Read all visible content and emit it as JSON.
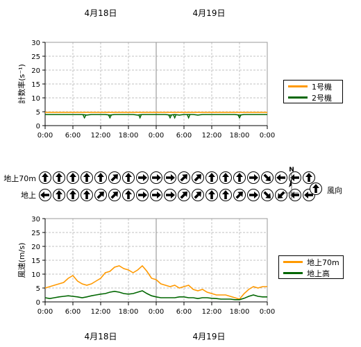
{
  "dates": {
    "day1": "4月18日",
    "day2": "4月19日"
  },
  "time_ticks": [
    "0:00",
    "6:00",
    "12:00",
    "18:00",
    "0:00",
    "6:00",
    "12:00",
    "18:00",
    "0:00"
  ],
  "colors": {
    "unit1": "#ff9900",
    "unit2": "#006600",
    "speed70": "#ff9900",
    "speedGround": "#006600"
  },
  "count_legend": {
    "unit1": "1号機",
    "unit2": "2号機"
  },
  "speed_legend": {
    "speed70": "地上70m",
    "speedGround": "地上高"
  },
  "direction": {
    "row1_label": "地上70m",
    "row2_label": "地上",
    "legend_label": "風向",
    "north_label": "N",
    "row1_deg": [
      0,
      0,
      0,
      0,
      0,
      45,
      0,
      90,
      90,
      90,
      45,
      45,
      0,
      0,
      0,
      90,
      135,
      270,
      270,
      0
    ],
    "row2_deg": [
      270,
      0,
      0,
      0,
      45,
      45,
      0,
      90,
      90,
      90,
      45,
      45,
      0,
      0,
      45,
      90,
      135,
      225,
      270,
      270
    ]
  },
  "chart_data": [
    {
      "type": "line",
      "ylabel": "計数率(s⁻¹)",
      "ylim": [
        0,
        30
      ],
      "yticks": [
        0,
        5,
        10,
        15,
        20,
        25,
        30
      ],
      "xlim_hours": [
        0,
        48
      ],
      "series": [
        {
          "name": "1号機",
          "values": [
            4.8,
            4.8,
            4.8,
            4.8,
            4.8,
            4.8,
            4.8,
            4.8,
            4.8,
            4.8,
            4.8,
            4.8,
            4.8,
            4.8,
            4.8,
            4.8,
            4.8,
            4.8,
            4.8,
            4.8,
            4.8,
            4.8,
            4.8,
            4.8,
            4.8,
            4.8,
            4.8,
            4.8,
            4.8,
            4.8,
            4.8,
            4.8,
            4.8,
            4.8,
            4.8,
            4.8,
            4.8,
            4.8,
            4.8,
            4.8,
            4.8,
            4.8,
            4.8,
            4.8,
            4.8,
            4.8,
            4.8,
            4.8,
            4.8
          ]
        },
        {
          "name": "2号機",
          "values": [
            4.0,
            4.0,
            4.0,
            4.0,
            4.0,
            4.0,
            4.0,
            4.0,
            4.0,
            3.8,
            4.0,
            4.0,
            4.0,
            4.0,
            3.8,
            4.0,
            4.0,
            4.0,
            4.0,
            4.0,
            3.8,
            4.0,
            4.0,
            4.0,
            4.0,
            4.0,
            4.0,
            3.8,
            4.0,
            3.8,
            4.0,
            4.0,
            4.0,
            3.8,
            4.0,
            4.0,
            4.0,
            4.0,
            4.0,
            4.0,
            4.0,
            4.0,
            3.8,
            4.0,
            4.0,
            4.0,
            4.0,
            4.0,
            4.0
          ]
        }
      ],
      "dips": [
        {
          "series": "2号機",
          "hour": 8.5,
          "value": 2.8
        },
        {
          "series": "2号機",
          "hour": 14,
          "value": 2.8
        },
        {
          "series": "2号機",
          "hour": 20.5,
          "value": 2.8
        },
        {
          "series": "2号機",
          "hour": 27,
          "value": 2.8
        },
        {
          "series": "2号機",
          "hour": 28,
          "value": 2.8
        },
        {
          "series": "2号機",
          "hour": 31,
          "value": 2.8
        },
        {
          "series": "2号機",
          "hour": 42,
          "value": 2.8
        }
      ]
    },
    {
      "type": "line",
      "ylabel": "風速(m/s)",
      "ylim": [
        0,
        30
      ],
      "yticks": [
        0,
        5,
        10,
        15,
        20,
        25,
        30
      ],
      "xlim_hours": [
        0,
        48
      ],
      "series": [
        {
          "name": "地上70m",
          "values": [
            5.0,
            5.5,
            6.0,
            6.5,
            7.0,
            8.5,
            9.5,
            7.5,
            6.5,
            6.0,
            6.5,
            7.5,
            8.5,
            10.5,
            11.0,
            12.5,
            13.0,
            12.0,
            11.5,
            10.5,
            11.5,
            13.0,
            11.0,
            8.5,
            8.0,
            6.5,
            6.0,
            5.5,
            6.0,
            5.0,
            5.5,
            6.0,
            4.5,
            4.0,
            4.5,
            3.5,
            3.0,
            2.5,
            2.5,
            2.5,
            2.0,
            1.5,
            1.0,
            3.0,
            4.5,
            5.5,
            5.0,
            5.5,
            5.5
          ]
        },
        {
          "name": "地上高",
          "values": [
            1.5,
            1.2,
            1.5,
            1.8,
            2.0,
            2.2,
            2.0,
            1.8,
            1.5,
            1.8,
            2.2,
            2.5,
            2.8,
            3.0,
            3.5,
            3.8,
            3.5,
            3.0,
            2.8,
            3.0,
            3.5,
            4.0,
            3.0,
            2.2,
            1.8,
            1.5,
            1.5,
            1.5,
            1.5,
            1.8,
            1.8,
            1.5,
            1.5,
            1.2,
            1.5,
            1.5,
            1.3,
            1.2,
            1.0,
            1.0,
            1.0,
            0.8,
            0.8,
            1.3,
            2.0,
            2.5,
            2.0,
            1.8,
            1.8
          ]
        }
      ]
    }
  ]
}
